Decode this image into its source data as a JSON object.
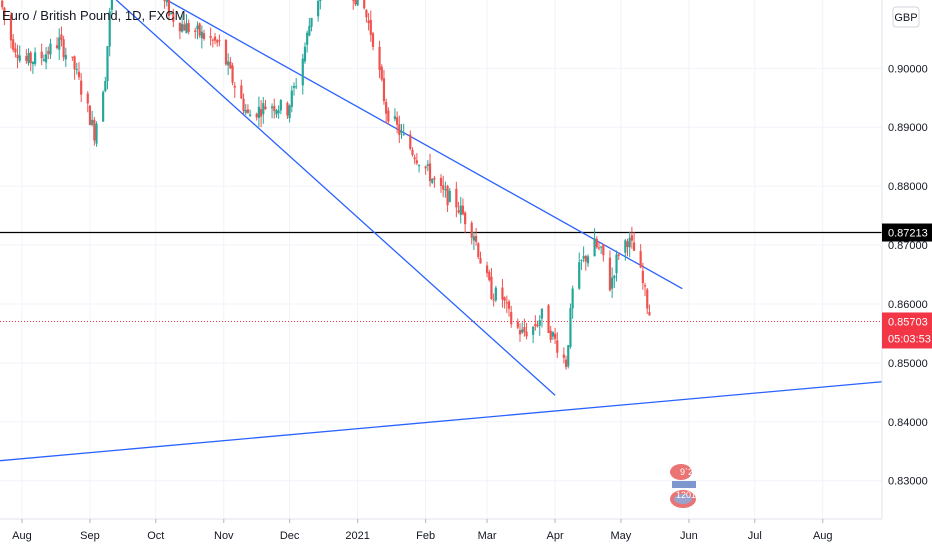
{
  "chart_data": {
    "type": "candlestick",
    "title": "Euro / British Pound, 1D, FXCM",
    "currency": "GBP",
    "y_ticks": [
      "0.90000",
      "0.89000",
      "0.88000",
      "0.87000",
      "0.86000",
      "0.85000",
      "0.84000",
      "0.83000"
    ],
    "y_tick_values": [
      0.9,
      0.89,
      0.88,
      0.87,
      0.86,
      0.85,
      0.84,
      0.83
    ],
    "x_ticks": [
      "Aug",
      "Sep",
      "Oct",
      "Nov",
      "Dec",
      "2021",
      "Feb",
      "Mar",
      "Apr",
      "May",
      "Jun",
      "Jul",
      "Aug"
    ],
    "x_tick_dates": [
      "2020-08-01",
      "2020-09-01",
      "2020-10-01",
      "2020-11-01",
      "2020-12-01",
      "2021-01-01",
      "2021-02-01",
      "2021-03-01",
      "2021-04-01",
      "2021-05-01",
      "2021-06-01",
      "2021-07-01",
      "2021-08-01"
    ],
    "ylim": [
      0.8235,
      0.9116
    ],
    "xlim": [
      "2020-07-22",
      "2021-08-28"
    ],
    "grid": true,
    "colors": {
      "up": "#26a69a",
      "down": "#ef5350",
      "trend": "#2962ff",
      "level": "#000000",
      "price_label": "#f23645"
    },
    "support_level": {
      "value": 0.87213,
      "label": "0.87213"
    },
    "last_price": {
      "value": 0.85703,
      "label": "0.85703",
      "countdown": "05:03:53"
    },
    "trend_lines": [
      {
        "name": "upper-channel",
        "from": {
          "date": "2020-10-06",
          "value": 0.9116
        },
        "to": {
          "date": "2021-05-29",
          "value": 0.8626
        }
      },
      {
        "name": "lower-channel",
        "from": {
          "date": "2020-09-13",
          "value": 0.9116
        },
        "to": {
          "date": "2021-04-01",
          "value": 0.8445
        }
      },
      {
        "name": "long-term-support",
        "from": {
          "date": "2020-07-22",
          "value": 0.8334
        },
        "to": {
          "date": "2021-08-28",
          "value": 0.8468
        }
      }
    ],
    "close_path": [
      [
        "2020-07-22",
        0.9115
      ],
      [
        "2020-07-27",
        0.905
      ],
      [
        "2020-08-02",
        0.901
      ],
      [
        "2020-08-10",
        0.902
      ],
      [
        "2020-08-18",
        0.9045
      ],
      [
        "2020-08-25",
        0.9
      ],
      [
        "2020-08-31",
        0.893
      ],
      [
        "2020-09-03",
        0.889
      ],
      [
        "2020-09-08",
        0.899
      ],
      [
        "2020-09-11",
        0.914
      ],
      [
        "2020-09-20",
        0.916
      ],
      [
        "2020-09-30",
        0.914
      ],
      [
        "2020-10-10",
        0.908
      ],
      [
        "2020-10-20",
        0.906
      ],
      [
        "2020-10-30",
        0.904
      ],
      [
        "2020-11-05",
        0.898
      ],
      [
        "2020-11-12",
        0.892
      ],
      [
        "2020-11-22",
        0.894
      ],
      [
        "2020-11-30",
        0.893
      ],
      [
        "2020-12-06",
        0.9
      ],
      [
        "2020-12-12",
        0.911
      ],
      [
        "2020-12-20",
        0.915
      ],
      [
        "2020-12-28",
        0.914
      ],
      [
        "2021-01-04",
        0.91
      ],
      [
        "2021-01-08",
        0.905
      ],
      [
        "2021-01-14",
        0.893
      ],
      [
        "2021-01-22",
        0.888
      ],
      [
        "2021-02-01",
        0.883
      ],
      [
        "2021-02-08",
        0.879
      ],
      [
        "2021-02-15",
        0.877
      ],
      [
        "2021-02-23",
        0.872
      ],
      [
        "2021-02-27",
        0.866
      ],
      [
        "2021-03-03",
        0.862
      ],
      [
        "2021-03-08",
        0.861
      ],
      [
        "2021-03-12",
        0.857
      ],
      [
        "2021-03-17",
        0.855
      ],
      [
        "2021-03-22",
        0.856
      ],
      [
        "2021-03-26",
        0.858
      ],
      [
        "2021-03-29",
        0.856
      ],
      [
        "2021-04-02",
        0.853
      ],
      [
        "2021-04-06",
        0.85
      ],
      [
        "2021-04-09",
        0.862
      ],
      [
        "2021-04-13",
        0.867
      ],
      [
        "2021-04-19",
        0.87
      ],
      [
        "2021-04-23",
        0.868
      ],
      [
        "2021-04-26",
        0.863
      ],
      [
        "2021-04-30",
        0.869
      ],
      [
        "2021-05-04",
        0.871
      ],
      [
        "2021-05-07",
        0.869
      ],
      [
        "2021-05-10",
        0.865
      ],
      [
        "2021-05-13",
        0.86
      ],
      [
        "2021-05-15",
        0.857
      ]
    ]
  }
}
